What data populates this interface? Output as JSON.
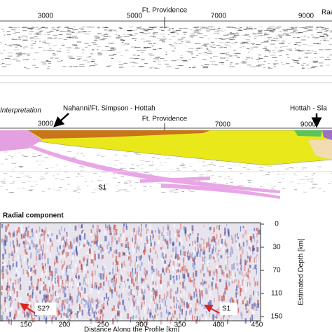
{
  "top_panel": {
    "labels": [
      "3000",
      "5000",
      "Ft. Providence",
      "7000",
      "9000",
      "Rae"
    ]
  },
  "middle_panel": {
    "title": "Interpretation",
    "left_label": "Nahanni/Ft. Simpson - Hottah",
    "right_label": "Hottah - Sla",
    "labels": [
      "3000",
      "Ft. Providence",
      "7000",
      "9000"
    ],
    "reflector": "S1"
  },
  "bottom_panel": {
    "title": "Radial component",
    "x_axis_title": "Distance Along the Profile [km]",
    "x_labels": [
      "150",
      "200",
      "250",
      "300",
      "350",
      "400",
      "450"
    ],
    "y_axis_title": "Estimated Depth [km]",
    "y_labels": [
      "0",
      "30",
      "70",
      "110",
      "150"
    ],
    "annotations": [
      "S2?",
      "S1"
    ]
  }
}
